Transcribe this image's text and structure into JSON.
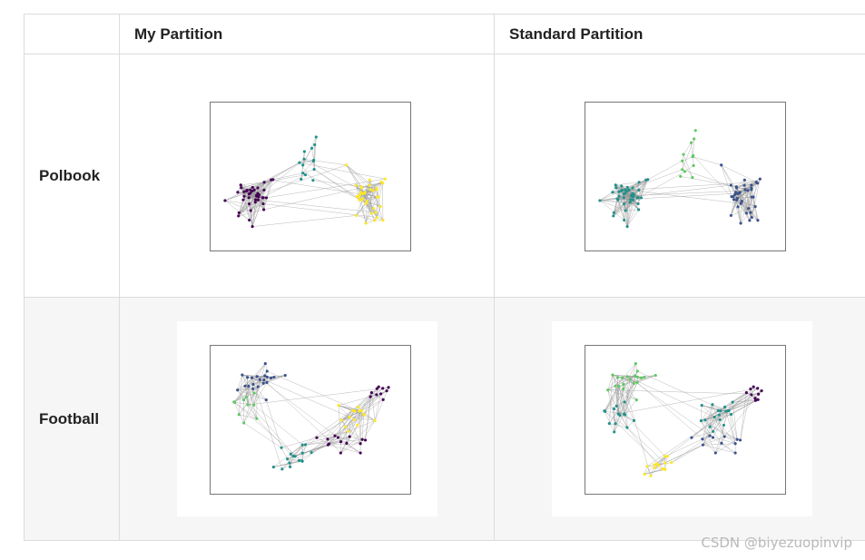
{
  "table": {
    "headers": [
      "",
      "My Partition",
      "Standard Partition"
    ],
    "rows": [
      {
        "label": "Polbook"
      },
      {
        "label": "Football"
      }
    ]
  },
  "colors": {
    "purple": "#440154",
    "blue": "#3b528b",
    "teal": "#21918c",
    "green": "#5ec962",
    "yellow": "#fde725",
    "edge": "#9a9a9a"
  },
  "watermark": "CSDN @biyezuopinvip"
}
